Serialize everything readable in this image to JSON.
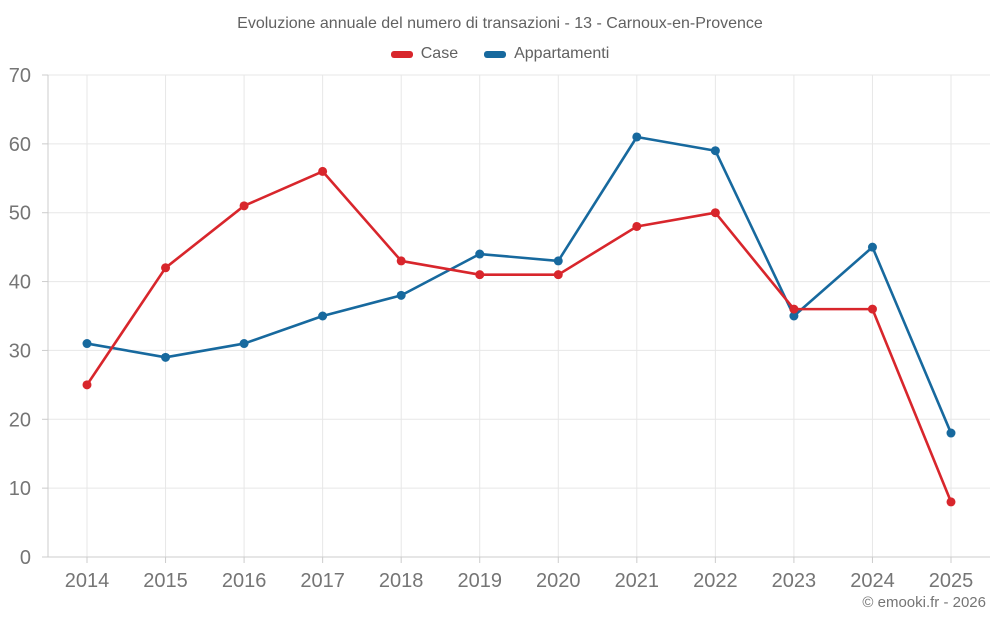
{
  "page": {
    "title": "Evoluzione annuale del numero di transazioni - 13 - Carnoux-en-Provence",
    "footer": "© emooki.fr - 2026"
  },
  "colors": {
    "case_red": "#d8262c",
    "appartamenti_blue": "#17699e",
    "grid": "#e7e7e7",
    "axis": "#cccccc",
    "title_text": "#616161",
    "tick_text": "#757575"
  },
  "chart_data": {
    "type": "line",
    "title": "Evoluzione annuale del numero di transazioni - 13 - Carnoux-en-Provence",
    "xlabel": "",
    "ylabel": "",
    "categories": [
      "2014",
      "2015",
      "2016",
      "2017",
      "2018",
      "2019",
      "2020",
      "2021",
      "2022",
      "2023",
      "2024",
      "2025"
    ],
    "series": [
      {
        "name": "Case",
        "color": "#d8262c",
        "values": [
          25,
          42,
          51,
          56,
          43,
          41,
          41,
          48,
          50,
          36,
          36,
          8
        ]
      },
      {
        "name": "Appartamenti",
        "color": "#17699e",
        "values": [
          31,
          29,
          31,
          35,
          38,
          44,
          43,
          61,
          59,
          35,
          45,
          18
        ]
      }
    ],
    "ylim": [
      0,
      70
    ],
    "ytick_step": 10,
    "grid": true,
    "legend_position": "top"
  }
}
